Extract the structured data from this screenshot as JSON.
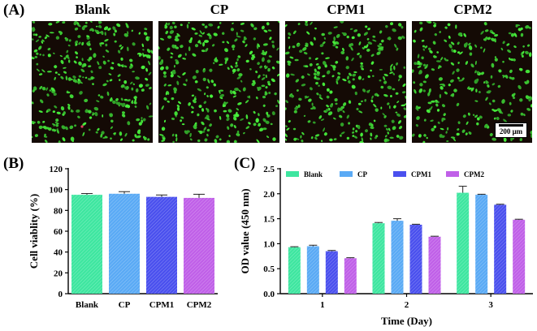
{
  "panels": {
    "a_label": "(A)",
    "b_label": "(B)",
    "c_label": "(C)"
  },
  "micrographs": [
    {
      "title": "Blank",
      "density": 1.0
    },
    {
      "title": "CP",
      "density": 0.95
    },
    {
      "title": "CPM1",
      "density": 0.92
    },
    {
      "title": "CPM2",
      "density": 0.8
    }
  ],
  "scale_bar": {
    "label": "200 μm"
  },
  "colors": {
    "Blank": "#3ee6a0",
    "CP": "#5aaaf5",
    "CPM1": "#4a50ee",
    "CPM2": "#c060e8",
    "cell_green": "#3fd23f",
    "background": "#140a05"
  },
  "chart_data": [
    {
      "type": "bar",
      "title": "",
      "xlabel": "",
      "ylabel": "Cell viablity (%)",
      "categories": [
        "Blank",
        "CP",
        "CPM1",
        "CPM2"
      ],
      "values": [
        95,
        96,
        93,
        92
      ],
      "errors": [
        1.2,
        2.0,
        1.8,
        3.5
      ],
      "ylim": [
        0,
        120
      ],
      "yticks": [
        "0",
        "20",
        "40",
        "60",
        "80",
        "100",
        "120"
      ],
      "grid": false
    },
    {
      "type": "bar",
      "title": "",
      "xlabel": "Time (Day)",
      "ylabel": "OD value (450 nm)",
      "categories": [
        "1",
        "2",
        "3"
      ],
      "series": [
        {
          "name": "Blank",
          "values": [
            0.93,
            1.41,
            2.02
          ],
          "errors": [
            0.01,
            0.015,
            0.13
          ]
        },
        {
          "name": "CP",
          "values": [
            0.95,
            1.46,
            1.98
          ],
          "errors": [
            0.02,
            0.04,
            0.01
          ]
        },
        {
          "name": "CPM1",
          "values": [
            0.85,
            1.38,
            1.78
          ],
          "errors": [
            0.015,
            0.01,
            0.01
          ]
        },
        {
          "name": "CPM2",
          "values": [
            0.71,
            1.14,
            1.48
          ],
          "errors": [
            0.01,
            0.01,
            0.01
          ]
        }
      ],
      "ylim": [
        0,
        2.5
      ],
      "yticks": [
        "0.0",
        "0.5",
        "1.0",
        "1.5",
        "2.0",
        "2.5"
      ],
      "legend": "top",
      "grid": false
    }
  ]
}
